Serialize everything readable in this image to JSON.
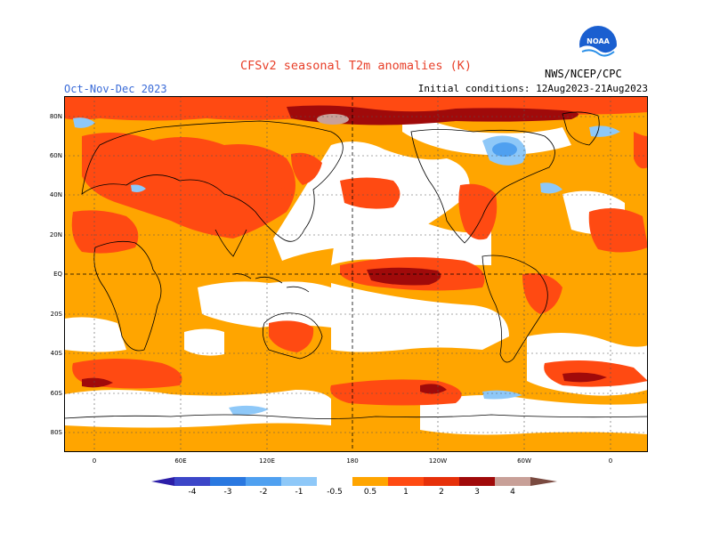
{
  "title": "CFSv2 seasonal T2m anomalies (K)",
  "season": "Oct-Nov-Dec 2023",
  "initial_conditions": "Initial conditions: 12Aug2023-21Aug2023",
  "agency": "NWS/NCEP/CPC",
  "logo_text": "NOAA",
  "lat_labels": [
    "80N",
    "60N",
    "40N",
    "20N",
    "EQ",
    "20S",
    "40S",
    "60S",
    "80S"
  ],
  "lon_labels": [
    "0",
    "60E",
    "120E",
    "180",
    "120W",
    "60W",
    "0"
  ],
  "colorbar": {
    "labels": [
      "-4",
      "-3",
      "-2",
      "-1",
      "-0.5",
      "0.5",
      "1",
      "2",
      "3",
      "4"
    ],
    "colors": [
      "#2c1ea8",
      "#3c46c8",
      "#2a78e0",
      "#4fa0f0",
      "#8ec8f8",
      "#ffffff",
      "#ffa500",
      "#ff4a12",
      "#e6300a",
      "#a00a0a",
      "#c8a098",
      "#7a4a40"
    ]
  },
  "legend_colors": {
    "weak_warm": "#ffa500",
    "moderate_warm": "#ff4a12",
    "strong_warm": "#a00a0a",
    "extreme_warm": "#c8a098",
    "weak_cold": "#8ec8f8",
    "cold": "#4fa0f0"
  }
}
